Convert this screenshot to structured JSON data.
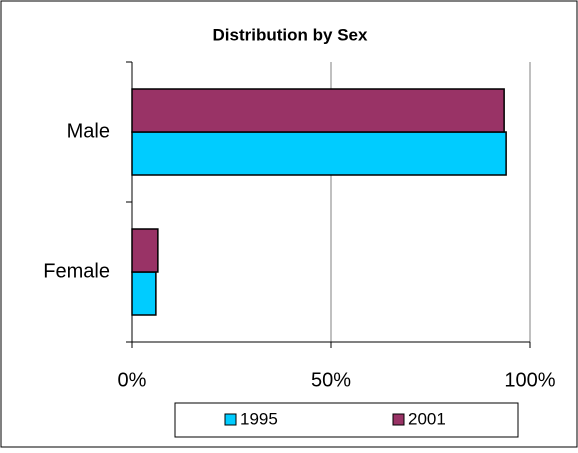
{
  "chart_data": {
    "type": "hbar",
    "title": "Distribution by Sex",
    "categories": [
      "Male",
      "Female"
    ],
    "series": [
      {
        "name": "1995",
        "color": "#00ccff",
        "values": [
          94,
          6
        ]
      },
      {
        "name": "2001",
        "color": "#993366",
        "values": [
          93.5,
          6.5
        ]
      }
    ],
    "xlim": [
      0,
      100
    ],
    "xticks": [
      {
        "value": 0,
        "label": "0%"
      },
      {
        "value": 50,
        "label": "50%"
      },
      {
        "value": 100,
        "label": "100%"
      }
    ],
    "grid": true,
    "legend": "bottom"
  }
}
